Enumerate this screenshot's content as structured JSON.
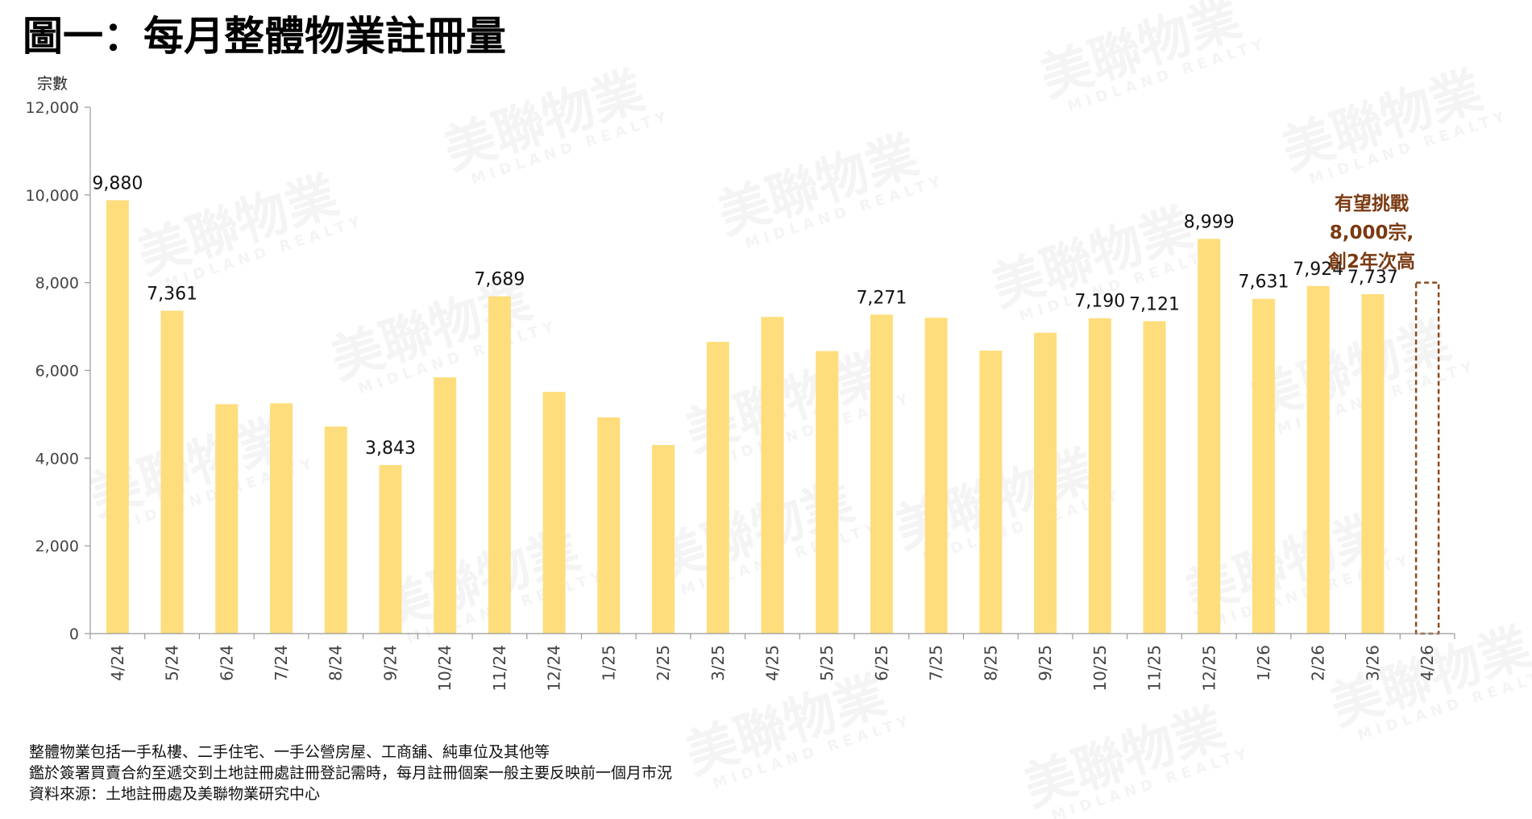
{
  "page": {
    "title": "圖一：每月整體物業註冊量",
    "watermark": "美聯物業",
    "watermark_en": "MIDLAND REALTY"
  },
  "notes": [
    "整體物業包括一手私樓、二手住宅、一手公營房屋、工商舖、純車位及其他等",
    "鑑於簽署買賣合約至遞交到土地註冊處註冊登記需時，每月註冊個案一般主要反映前一個月市況",
    "資料來源：土地註冊處及美聯物業研究中心"
  ],
  "colors": {
    "bar": "#fedd7c",
    "forecast_box": "#8b4b1e",
    "annotation": "#7b3a12",
    "axis": "#999999"
  },
  "chart_data": {
    "type": "bar",
    "title": "圖一：每月整體物業註冊量",
    "ylabel": "宗數",
    "xlabel": "",
    "ylim": [
      0,
      12000
    ],
    "yticks": [
      0,
      2000,
      4000,
      6000,
      8000,
      10000,
      12000
    ],
    "ytick_labels": [
      "0",
      "2,000",
      "4,000",
      "6,000",
      "8,000",
      "10,000",
      "12,000"
    ],
    "grid": false,
    "categories": [
      "4/24",
      "5/24",
      "6/24",
      "7/24",
      "8/24",
      "9/24",
      "10/24",
      "11/24",
      "12/24",
      "1/25",
      "2/25",
      "3/25",
      "4/25",
      "5/25",
      "6/25",
      "7/25",
      "8/25",
      "9/25",
      "10/25",
      "11/25",
      "12/25",
      "1/26",
      "2/26",
      "3/26",
      "4/26"
    ],
    "values": [
      9880,
      7361,
      5230,
      5250,
      4720,
      3843,
      5840,
      7689,
      5510,
      4930,
      4300,
      6650,
      7220,
      6440,
      7271,
      7200,
      6450,
      6860,
      7190,
      7121,
      8999,
      7631,
      7924,
      7737,
      8000
    ],
    "data_labels": [
      "9,880",
      "7,361",
      "",
      "",
      "",
      "3,843",
      "",
      "7,689",
      "",
      "",
      "",
      "",
      "",
      "",
      "7,271",
      "",
      "",
      "",
      "7,190",
      "7,121",
      "8,999",
      "7,631",
      "7,924",
      "7,737",
      ""
    ],
    "forecast_index": 24,
    "annotation": [
      "有望挑戰",
      "8,000宗,",
      "創2年次高"
    ]
  }
}
